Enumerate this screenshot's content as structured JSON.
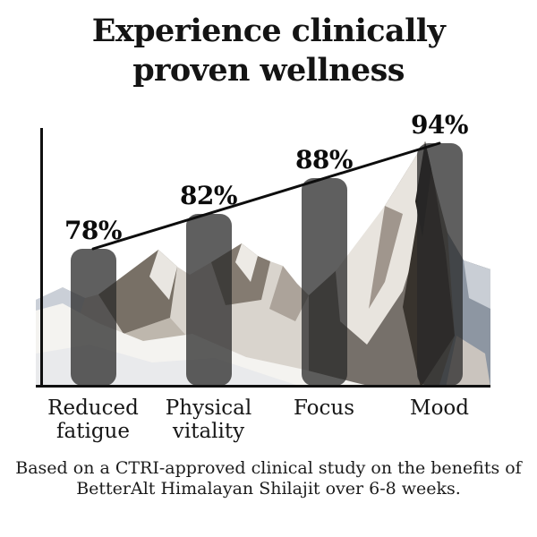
{
  "title": {
    "line1": "Experience clinically",
    "line2": "proven wellness"
  },
  "chart_data": {
    "type": "bar",
    "categories": [
      "Reduced fatigue",
      "Physical vitality",
      "Focus",
      "Mood"
    ],
    "category_lines": [
      [
        "Reduced",
        "fatigue"
      ],
      [
        "Physical",
        "vitality"
      ],
      [
        "Focus"
      ],
      [
        "Mood"
      ]
    ],
    "values": [
      78,
      82,
      88,
      94
    ],
    "value_labels": [
      "78%",
      "82%",
      "88%",
      "94%"
    ],
    "unit": "%",
    "ylim": [
      0,
      100
    ],
    "grid": false,
    "legend": false,
    "trend_line": true,
    "bar_color_rgba": "rgba(42,42,42,0.75)",
    "axis_color": "#101010",
    "line_color": "#0d0d0d",
    "background_image": "snow-capped-mountain-photo"
  },
  "footer": {
    "line1": "Based on a CTRI-approved clinical study on the benefits of",
    "line2": "BetterAlt Himalayan Shilajit over 6-8 weeks."
  }
}
